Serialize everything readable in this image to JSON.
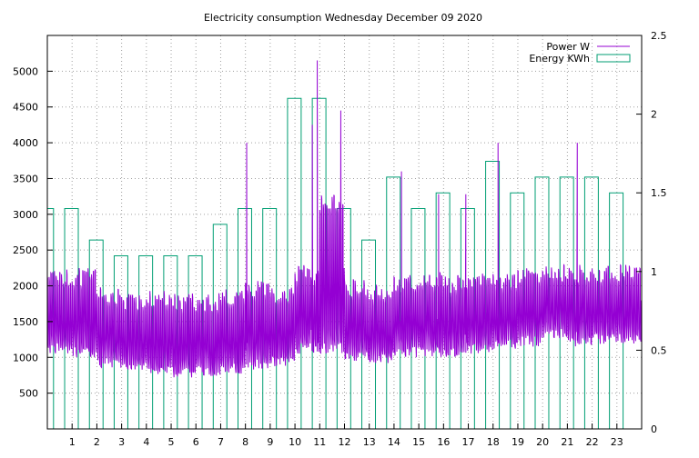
{
  "chart_data": {
    "type": "line",
    "title": "Electricity consumption Wednesday December 09 2020",
    "x_ticks": [
      "1",
      "2",
      "3",
      "4",
      "5",
      "6",
      "7",
      "8",
      "9",
      "10",
      "11",
      "12",
      "13",
      "14",
      "15",
      "16",
      "17",
      "18",
      "19",
      "20",
      "21",
      "22",
      "23"
    ],
    "xlim": [
      0,
      24
    ],
    "ylim": [
      0,
      5500
    ],
    "y2lim": [
      0,
      2.5
    ],
    "y_ticks": [
      500,
      1000,
      1500,
      2000,
      2500,
      3000,
      3500,
      4000,
      4500,
      5000
    ],
    "y2_ticks": [
      "0",
      "0.5",
      "1",
      "1.5",
      "2",
      "2.5"
    ],
    "grid": true,
    "legend_position": "top-right",
    "series": [
      {
        "name": "Energy KWh",
        "axis": "y2",
        "style": "impulse-boxes",
        "color": "#009e73",
        "x": [
          0,
          1,
          2,
          3,
          4,
          5,
          6,
          7,
          8,
          9,
          10,
          11,
          12,
          13,
          14,
          15,
          16,
          17,
          18,
          19,
          20,
          21,
          22,
          23
        ],
        "values": [
          1.4,
          1.4,
          1.2,
          1.1,
          1.1,
          1.1,
          1.1,
          1.3,
          1.4,
          1.4,
          2.1,
          2.1,
          1.4,
          1.2,
          1.6,
          1.4,
          1.5,
          1.4,
          1.7,
          1.5,
          1.6,
          1.6,
          1.6,
          1.5
        ]
      },
      {
        "name": "Power W",
        "axis": "y",
        "style": "line",
        "color": "#9400d3",
        "hourly_low": [
          1050,
          1000,
          850,
          780,
          760,
          720,
          740,
          760,
          830,
          860,
          1050,
          1050,
          950,
          920,
          1000,
          1000,
          1000,
          1050,
          1100,
          1150,
          1250,
          1150,
          1180,
          1180
        ],
        "hourly_high": [
          2250,
          2250,
          2000,
          1900,
          1950,
          1900,
          1900,
          1950,
          2100,
          2000,
          2300,
          3300,
          2100,
          2050,
          2150,
          2200,
          2150,
          2200,
          2200,
          2250,
          2300,
          2300,
          2300,
          2300
        ],
        "spikes": [
          {
            "x": 8.05,
            "y": 4000
          },
          {
            "x": 10.7,
            "y": 4250
          },
          {
            "x": 10.9,
            "y": 5150
          },
          {
            "x": 11.85,
            "y": 4450
          },
          {
            "x": 14.3,
            "y": 3600
          },
          {
            "x": 15.8,
            "y": 3280
          },
          {
            "x": 16.9,
            "y": 3280
          },
          {
            "x": 18.2,
            "y": 4000
          },
          {
            "x": 21.4,
            "y": 4000
          }
        ]
      }
    ]
  }
}
